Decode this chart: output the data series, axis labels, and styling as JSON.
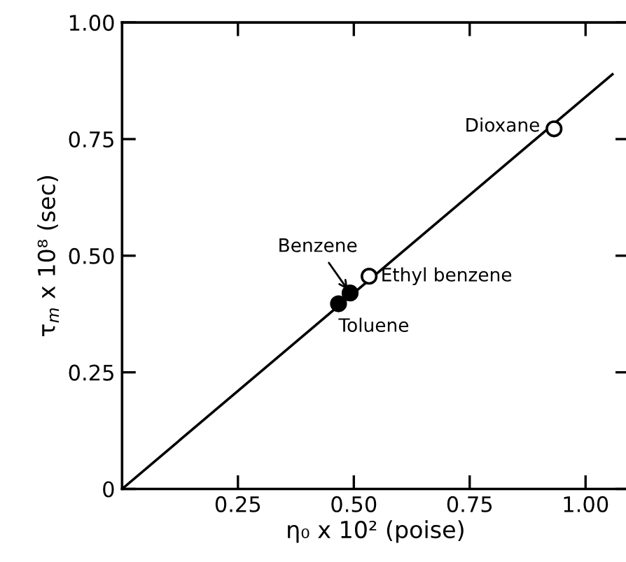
{
  "chart_data": {
    "type": "scatter",
    "xlabel": "η₀ x 10² (poise)",
    "ylabel": "τ$_{m}$ x 10⁸ (sec)",
    "xlim": [
      0,
      1.094
    ],
    "ylim": [
      0,
      1.0
    ],
    "xticks": [
      0.25,
      {
        "value": 0.5,
        "label": "0.50"
      },
      0.75,
      {
        "value": 1.0,
        "label": "1.00"
      }
    ],
    "yticks": [
      0,
      0.25,
      {
        "value": 0.5,
        "label": "0.50"
      },
      0.75,
      {
        "value": 1.0,
        "label": "1.00"
      }
    ],
    "series": [
      {
        "color": "#000000",
        "marker": "circle",
        "x": [
          0.467,
          0.492,
          0.533,
          0.932
        ],
        "values": [
          0.397,
          0.42,
          0.456,
          0.772
        ],
        "colors": [
          "#000000",
          "#000000",
          "#ffffff",
          "#ffffff"
        ]
      },
      {
        "type": "line",
        "color": "#000000",
        "x": [
          0,
          1.058
        ],
        "values": [
          0,
          0.889
        ],
        "line_style": "solid",
        "marker": "none"
      }
    ],
    "annotations": [
      {
        "text": "Toluene",
        "x": 0.467,
        "y": 0.397
      },
      {
        "text": "Benzene",
        "x": 0.492,
        "y": 0.42
      },
      {
        "text": "Ethyl benzene",
        "x": 0.533,
        "y": 0.456
      },
      {
        "text": "Dioxane",
        "x": 0.932,
        "y": 0.772
      }
    ],
    "grid": false,
    "legend": false
  }
}
